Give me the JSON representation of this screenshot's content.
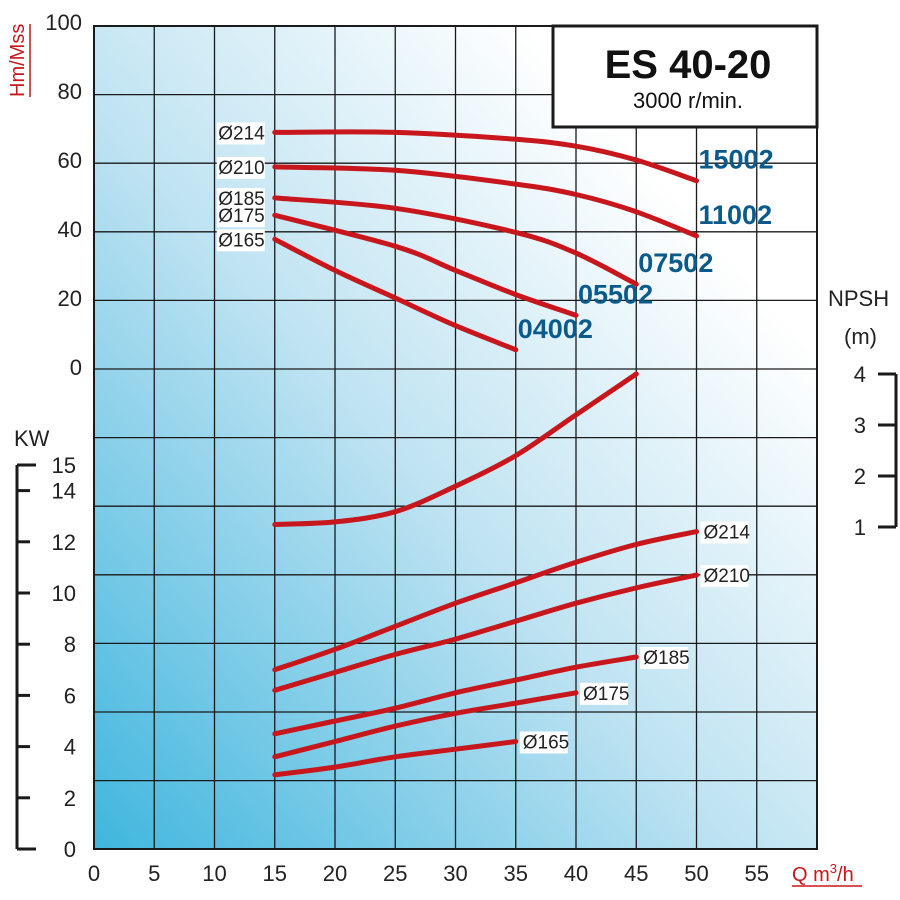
{
  "title_box": {
    "title": "ES 40-20",
    "subtitle": "3000 r/min."
  },
  "colors": {
    "curve": "#c8161d",
    "model_label": "#0a5a8c",
    "grid": "#1a1a1a"
  },
  "chart_data": {
    "type": "line",
    "x": {
      "label": "Q m³/h",
      "min": 0,
      "max": 60,
      "ticks": [
        0,
        5,
        10,
        15,
        20,
        25,
        30,
        35,
        40,
        45,
        50,
        55
      ]
    },
    "head_axis": {
      "label": "Hm/Mss",
      "ticks": [
        0,
        20,
        40,
        60,
        80,
        100
      ],
      "series": [
        {
          "name": "Ø214",
          "model": "15002",
          "points": [
            [
              15,
              68
            ],
            [
              25,
              68
            ],
            [
              35,
              66
            ],
            [
              40,
              64
            ],
            [
              45,
              60
            ],
            [
              50,
              54
            ]
          ]
        },
        {
          "name": "Ø210",
          "model": "11002",
          "points": [
            [
              15,
              58
            ],
            [
              25,
              57
            ],
            [
              35,
              53
            ],
            [
              40,
              50
            ],
            [
              45,
              45
            ],
            [
              50,
              38
            ]
          ]
        },
        {
          "name": "Ø185",
          "model": "07502",
          "points": [
            [
              15,
              49
            ],
            [
              25,
              46
            ],
            [
              35,
              39
            ],
            [
              40,
              33
            ],
            [
              45,
              24
            ]
          ]
        },
        {
          "name": "Ø175",
          "model": "05502",
          "points": [
            [
              15,
              44
            ],
            [
              25,
              35
            ],
            [
              30,
              28
            ],
            [
              35,
              21
            ],
            [
              40,
              15
            ]
          ]
        },
        {
          "name": "Ø165",
          "model": "04002",
          "points": [
            [
              15,
              37
            ],
            [
              20,
              28
            ],
            [
              25,
              20
            ],
            [
              30,
              12
            ],
            [
              35,
              5
            ]
          ]
        }
      ]
    },
    "npsh_axis": {
      "label_top": "NPSH",
      "label_unit": "(m)",
      "ticks": [
        1,
        2,
        3,
        4
      ],
      "curve": {
        "points": [
          [
            15,
            1.05
          ],
          [
            20,
            1.1
          ],
          [
            25,
            1.3
          ],
          [
            30,
            1.8
          ],
          [
            35,
            2.4
          ],
          [
            40,
            3.2
          ],
          [
            45,
            4.0
          ]
        ]
      }
    },
    "power_axis": {
      "label": "KW",
      "ticks": [
        0,
        2,
        4,
        6,
        8,
        10,
        12,
        14,
        15
      ],
      "series": [
        {
          "name": "Ø214",
          "points": [
            [
              15,
              7
            ],
            [
              20,
              7.8
            ],
            [
              25,
              8.7
            ],
            [
              30,
              9.6
            ],
            [
              35,
              10.4
            ],
            [
              40,
              11.2
            ],
            [
              45,
              11.9
            ],
            [
              50,
              12.4
            ]
          ]
        },
        {
          "name": "Ø210",
          "points": [
            [
              15,
              6.2
            ],
            [
              20,
              6.9
            ],
            [
              25,
              7.6
            ],
            [
              30,
              8.2
            ],
            [
              35,
              8.9
            ],
            [
              40,
              9.6
            ],
            [
              45,
              10.2
            ],
            [
              50,
              10.7
            ]
          ]
        },
        {
          "name": "Ø185",
          "points": [
            [
              15,
              4.5
            ],
            [
              20,
              5.0
            ],
            [
              25,
              5.5
            ],
            [
              30,
              6.1
            ],
            [
              35,
              6.6
            ],
            [
              40,
              7.1
            ],
            [
              45,
              7.5
            ]
          ]
        },
        {
          "name": "Ø175",
          "points": [
            [
              15,
              3.6
            ],
            [
              20,
              4.2
            ],
            [
              25,
              4.8
            ],
            [
              30,
              5.3
            ],
            [
              35,
              5.7
            ],
            [
              40,
              6.1
            ]
          ]
        },
        {
          "name": "Ø165",
          "points": [
            [
              15,
              2.9
            ],
            [
              20,
              3.2
            ],
            [
              25,
              3.6
            ],
            [
              30,
              3.9
            ],
            [
              35,
              4.2
            ]
          ]
        }
      ]
    }
  }
}
